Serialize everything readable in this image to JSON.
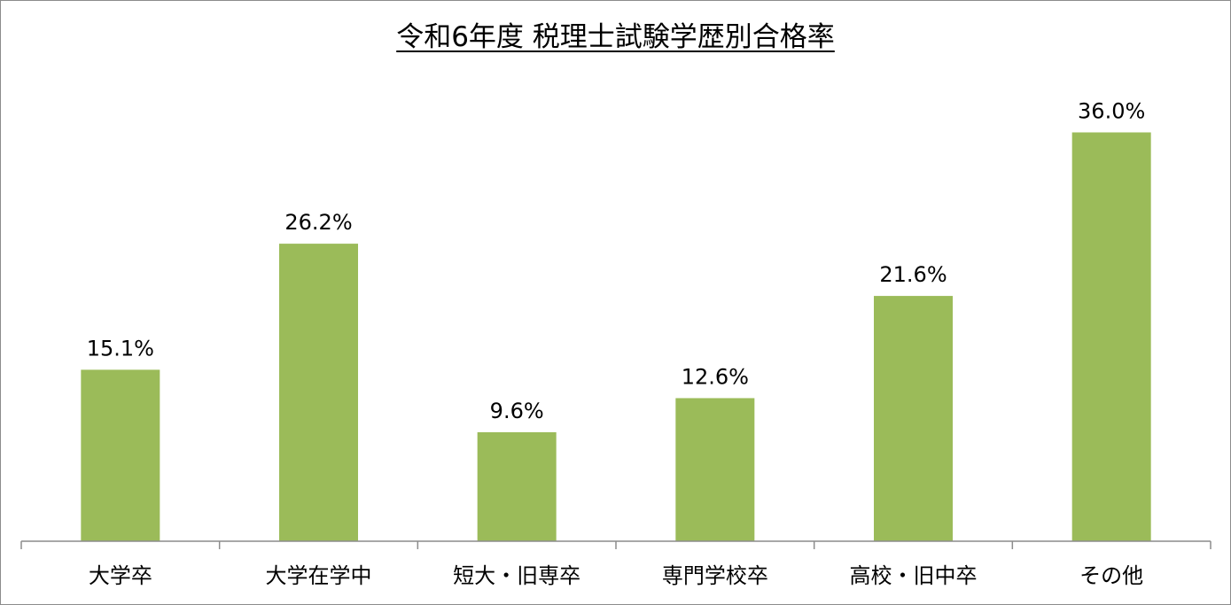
{
  "chart_data": {
    "type": "bar",
    "title": "令和6年度 税理士試験学歴別合格率",
    "categories": [
      "大学卒",
      "大学在学中",
      "短大・旧専卒",
      "専門学校卒",
      "高校・旧中卒",
      "その他"
    ],
    "values": [
      15.1,
      26.2,
      9.6,
      12.6,
      21.6,
      36.0
    ],
    "data_labels": [
      "15.1%",
      "26.2%",
      "9.6%",
      "12.6%",
      "21.6%",
      "36.0%"
    ],
    "ylim": [
      0,
      40
    ],
    "grid": false,
    "legend": "none",
    "bar_color": "#9bbb59",
    "axis_color": "#8c8c8c"
  }
}
